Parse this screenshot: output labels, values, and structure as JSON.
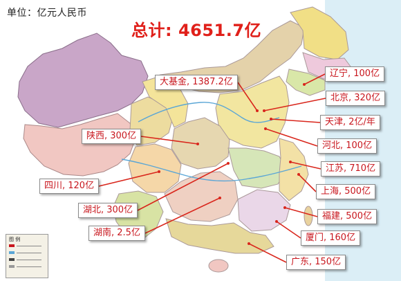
{
  "header": {
    "unit_label": "单位：亿元人民币",
    "total_label": "总计: 4651.7亿"
  },
  "legend": {
    "title": "图 例"
  },
  "labels": [
    {
      "id": "dajijin",
      "text": "大基金, 1387.2亿"
    },
    {
      "id": "liaoning",
      "text": "辽宁, 100亿"
    },
    {
      "id": "beijing",
      "text": "北京, 320亿"
    },
    {
      "id": "tianjin",
      "text": "天津, 2亿/年"
    },
    {
      "id": "hebei",
      "text": "河北, 100亿"
    },
    {
      "id": "jiangsu",
      "text": "江苏, 710亿"
    },
    {
      "id": "shanghai",
      "text": "上海, 500亿"
    },
    {
      "id": "fujian",
      "text": "福建, 500亿"
    },
    {
      "id": "xiamen",
      "text": "厦门, 160亿"
    },
    {
      "id": "guangdong",
      "text": "广东, 150亿"
    },
    {
      "id": "shaanxi",
      "text": "陕西, 300亿"
    },
    {
      "id": "sichuan",
      "text": "四川, 120亿"
    },
    {
      "id": "hubei",
      "text": "湖北, 300亿"
    },
    {
      "id": "hunan",
      "text": "湖南, 2.5亿"
    }
  ],
  "colors": {
    "title_red": "#e0201a",
    "label_red": "#c8161d",
    "leader_red": "#d9261c"
  }
}
